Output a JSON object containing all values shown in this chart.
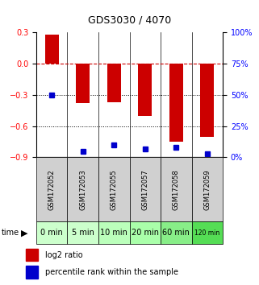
{
  "title": "GDS3030 / 4070",
  "samples": [
    "GSM172052",
    "GSM172053",
    "GSM172055",
    "GSM172057",
    "GSM172058",
    "GSM172059"
  ],
  "time_labels": [
    "0 min",
    "5 min",
    "10 min",
    "20 min",
    "60 min",
    "120 min"
  ],
  "log2_ratio": [
    0.28,
    -0.38,
    -0.37,
    -0.5,
    -0.75,
    -0.7
  ],
  "percentile_rank": [
    50,
    5,
    10,
    7,
    8,
    3
  ],
  "ylim_left": [
    -0.9,
    0.3
  ],
  "ylim_right": [
    0,
    100
  ],
  "yticks_left": [
    0.3,
    0,
    -0.3,
    -0.6,
    -0.9
  ],
  "yticks_right": [
    100,
    75,
    50,
    25,
    0
  ],
  "bar_color": "#cc0000",
  "dot_color": "#0000cc",
  "zero_line_color": "#cc0000",
  "grid_color": "#000000",
  "sample_label_bg": "#d0d0d0",
  "time_bg_colors": [
    "#ccffcc",
    "#ccffcc",
    "#bbffbb",
    "#aaffaa",
    "#88ee88",
    "#55dd55"
  ],
  "label_log2": "log2 ratio",
  "label_pct": "percentile rank within the sample",
  "title_fontsize": 9,
  "tick_fontsize": 7,
  "sample_fontsize": 6,
  "time_fontsize": 7,
  "legend_fontsize": 7
}
